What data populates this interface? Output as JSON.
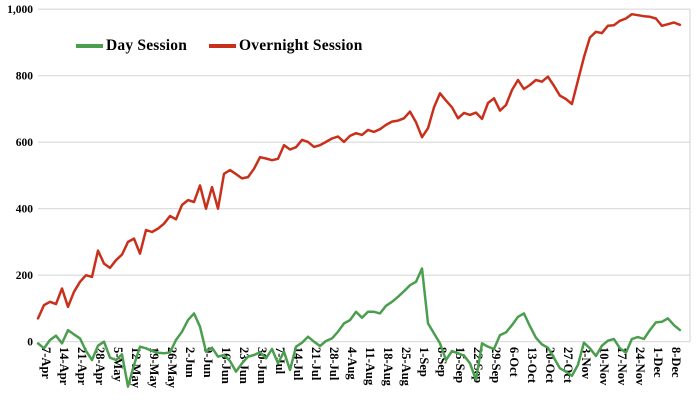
{
  "chart_data": {
    "type": "line",
    "title": "",
    "xlabel": "",
    "ylabel": "",
    "ylim": [
      -150,
      1000
    ],
    "yticks": [
      0,
      200,
      400,
      600,
      800,
      1000
    ],
    "ytick_labels": [
      "0",
      "200",
      "400",
      "600",
      "800",
      "1,000"
    ],
    "x_tick_labels": [
      "7-Apr",
      "14-Apr",
      "21-Apr",
      "28-Apr",
      "5-May",
      "12-May",
      "19-May",
      "26-May",
      "2-Jun",
      "9-Jun",
      "16-Jun",
      "23-Jun",
      "30-Jun",
      "7-Jul",
      "14-Jul",
      "21-Jul",
      "28-Jul",
      "4-Aug",
      "11-Aug",
      "18-Aug",
      "25-Aug",
      "1-Sep",
      "8-Sep",
      "15-Sep",
      "22-Sep",
      "29-Sep",
      "6-Oct",
      "13-Oct",
      "20-Oct",
      "27-Oct",
      "3-Nov",
      "10-Nov",
      "17-Nov",
      "24-Nov",
      "1-Dec",
      "8-Dec"
    ],
    "grid": "horizontal",
    "legend_position": "top-left-inside",
    "x_sampling": {
      "unit": "weekly tick index (tick i = x_tick_labels[i])",
      "start_week": -0.389,
      "step_week": 0.3333
    },
    "series": [
      {
        "name": "Day Session",
        "color": "#4C9E4F",
        "values": [
          -5,
          -20,
          5,
          18,
          -5,
          35,
          22,
          10,
          -28,
          -55,
          -12,
          0,
          -48,
          -55,
          -38,
          -135,
          -70,
          -15,
          -20,
          -28,
          -33,
          -35,
          -32,
          5,
          30,
          65,
          85,
          45,
          -30,
          -18,
          -45,
          -40,
          -58,
          -90,
          -65,
          -45,
          -40,
          -32,
          -50,
          -22,
          -65,
          -30,
          -85,
          -15,
          -3,
          15,
          0,
          -13,
          2,
          10,
          30,
          55,
          65,
          90,
          72,
          90,
          90,
          85,
          108,
          120,
          135,
          152,
          170,
          180,
          220,
          55,
          25,
          -5,
          -55,
          -28,
          -35,
          -42,
          -65,
          -115,
          -5,
          -15,
          -22,
          20,
          28,
          50,
          75,
          85,
          47,
          12,
          -8,
          -18,
          -48,
          -80,
          -90,
          -103,
          -70,
          -3,
          -20,
          -43,
          -12,
          3,
          8,
          -20,
          -33,
          8,
          14,
          8,
          35,
          58,
          60,
          70,
          50,
          35
        ]
      },
      {
        "name": "Overnight Session",
        "color": "#C9301B",
        "values": [
          70,
          110,
          120,
          113,
          160,
          105,
          150,
          180,
          200,
          195,
          274,
          235,
          222,
          245,
          262,
          300,
          310,
          265,
          336,
          330,
          340,
          355,
          378,
          368,
          411,
          426,
          420,
          470,
          400,
          465,
          400,
          505,
          516,
          504,
          491,
          495,
          520,
          555,
          551,
          546,
          550,
          591,
          578,
          585,
          607,
          601,
          586,
          591,
          601,
          611,
          617,
          601,
          619,
          627,
          622,
          637,
          631,
          639,
          652,
          662,
          665,
          672,
          692,
          660,
          615,
          642,
          705,
          747,
          725,
          705,
          672,
          688,
          682,
          689,
          670,
          718,
          732,
          695,
          712,
          757,
          787,
          760,
          772,
          787,
          782,
          797,
          770,
          740,
          730,
          715,
          785,
          855,
          915,
          932,
          928,
          950,
          952,
          965,
          972,
          985,
          982,
          979,
          977,
          972,
          950,
          955,
          960,
          953
        ]
      }
    ],
    "colors": {
      "grid": "#D9D9D9",
      "plot_right_border": "#D9D9D9",
      "text": "#000000",
      "background": "#FFFFFF"
    }
  }
}
